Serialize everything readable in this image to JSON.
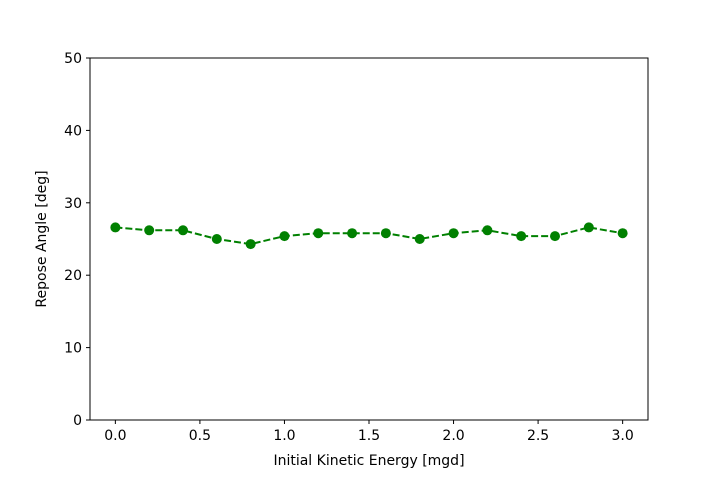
{
  "chart_data": {
    "type": "line",
    "title": "",
    "xlabel": "Initial Kinetic Energy [mgd]",
    "ylabel": "Repose Angle [deg]",
    "xlim": [
      -0.15,
      3.15
    ],
    "ylim": [
      0,
      50
    ],
    "xticks": [
      0.0,
      0.5,
      1.0,
      1.5,
      2.0,
      2.5,
      3.0
    ],
    "xtick_labels": [
      "0.0",
      "0.5",
      "1.0",
      "1.5",
      "2.0",
      "2.5",
      "3.0"
    ],
    "yticks": [
      0,
      10,
      20,
      30,
      40,
      50
    ],
    "ytick_labels": [
      "0",
      "10",
      "20",
      "30",
      "40",
      "50"
    ],
    "grid": false,
    "line_style": "dashed",
    "marker": "circle",
    "color": "#008000",
    "series": [
      {
        "x": [
          0.0,
          0.2,
          0.4,
          0.6,
          0.8,
          1.0,
          1.2,
          1.4,
          1.6,
          1.8,
          2.0,
          2.2,
          2.4,
          2.6,
          2.8,
          3.0
        ],
        "y": [
          26.6,
          26.2,
          26.2,
          25.0,
          24.3,
          25.4,
          25.8,
          25.8,
          25.8,
          25.0,
          25.8,
          26.2,
          25.4,
          25.4,
          26.6,
          25.8
        ]
      }
    ]
  }
}
